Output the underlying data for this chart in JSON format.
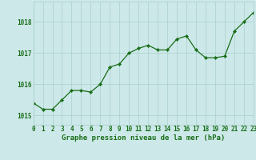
{
  "x": [
    0,
    1,
    2,
    3,
    4,
    5,
    6,
    7,
    8,
    9,
    10,
    11,
    12,
    13,
    14,
    15,
    16,
    17,
    18,
    19,
    20,
    21,
    22,
    23
  ],
  "y": [
    1015.4,
    1015.2,
    1015.2,
    1015.5,
    1015.8,
    1015.8,
    1015.75,
    1016.0,
    1016.55,
    1016.65,
    1017.0,
    1017.15,
    1017.25,
    1017.1,
    1017.1,
    1017.45,
    1017.55,
    1017.1,
    1016.85,
    1016.85,
    1016.9,
    1017.7,
    1018.0,
    1018.3
  ],
  "line_color": "#1a6e1a",
  "marker_color": "#1a6e1a",
  "bg_color": "#cce8e8",
  "grid_color": "#aacfcf",
  "xlabel": "Graphe pression niveau de la mer (hPa)",
  "xlabel_color": "#1a6e1a",
  "ylabel_ticks": [
    1015,
    1016,
    1017,
    1018
  ],
  "xlim": [
    0,
    23
  ],
  "ylim": [
    1014.7,
    1018.65
  ],
  "tick_color": "#1a6e1a",
  "label_fontsize": 5.5,
  "xlabel_fontsize": 6.5
}
